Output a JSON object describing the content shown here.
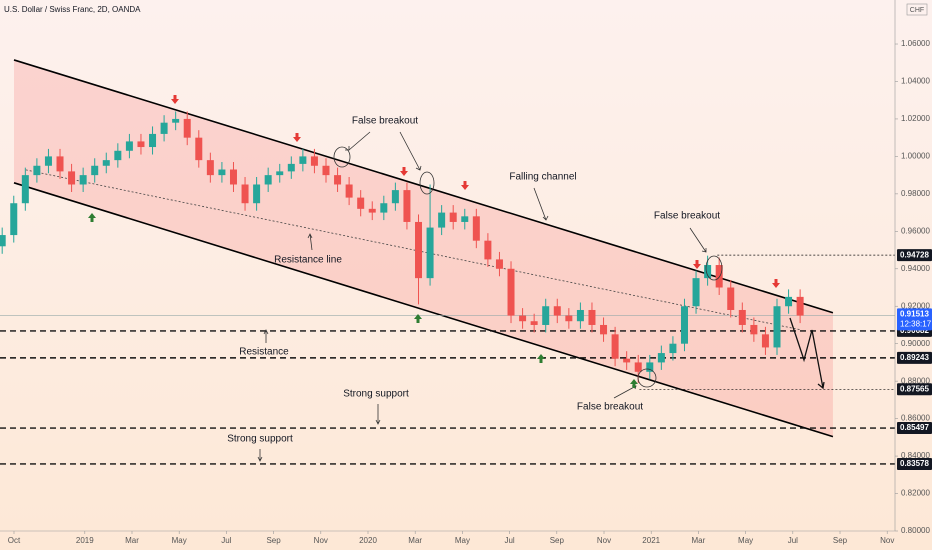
{
  "chart_data": {
    "type": "candlestick",
    "title": "U.S. Dollar / Swiss Franc, 2D, OANDA",
    "currency": "CHF",
    "x": [
      -0.5,
      -0.01,
      0.48,
      0.97,
      1.46,
      1.95,
      2.44,
      2.93,
      3.42,
      3.91,
      4.4,
      4.89,
      5.38,
      5.87,
      6.36,
      6.85,
      7.34,
      7.83,
      8.32,
      8.81,
      9.3,
      9.79,
      10.28,
      10.77,
      11.26,
      11.75,
      12.24,
      12.73,
      13.22,
      13.71,
      14.2,
      14.69,
      15.18,
      15.67,
      16.16,
      16.65,
      17.14,
      17.63,
      18.12,
      18.61,
      19.1,
      19.59,
      20.08,
      20.57,
      21.06,
      21.55,
      22.04,
      22.53,
      23.02,
      23.51,
      24.0,
      24.49,
      24.98,
      25.47,
      25.96,
      26.45,
      26.94,
      27.43,
      27.92,
      28.41,
      28.9,
      29.39,
      29.88,
      30.37,
      30.86,
      31.35,
      31.84,
      32.33,
      32.82,
      33.31
    ],
    "open": [
      0.952,
      0.958,
      0.975,
      0.99,
      0.995,
      1.0,
      0.992,
      0.985,
      0.99,
      0.995,
      0.998,
      1.003,
      1.008,
      1.005,
      1.012,
      1.018,
      1.02,
      1.01,
      0.998,
      0.99,
      0.993,
      0.985,
      0.975,
      0.985,
      0.99,
      0.992,
      0.996,
      1.0,
      0.995,
      0.99,
      0.985,
      0.978,
      0.972,
      0.97,
      0.975,
      0.982,
      0.965,
      0.935,
      0.962,
      0.97,
      0.965,
      0.968,
      0.955,
      0.945,
      0.94,
      0.915,
      0.912,
      0.91,
      0.92,
      0.915,
      0.912,
      0.918,
      0.91,
      0.905,
      0.892,
      0.89,
      0.885,
      0.89,
      0.895,
      0.9,
      0.92,
      0.935,
      0.942,
      0.93,
      0.918,
      0.91,
      0.905,
      0.898,
      0.92,
      0.925
    ],
    "high": [
      0.962,
      0.979,
      0.994,
      0.999,
      1.004,
      1.004,
      0.996,
      0.994,
      0.999,
      1.002,
      1.007,
      1.012,
      1.012,
      1.016,
      1.022,
      1.024,
      1.024,
      1.014,
      1.002,
      0.997,
      0.997,
      0.989,
      0.989,
      0.994,
      0.996,
      1.0,
      1.004,
      1.004,
      0.999,
      0.994,
      0.989,
      0.982,
      0.976,
      0.979,
      0.986,
      0.986,
      0.969,
      0.985,
      0.974,
      0.974,
      0.972,
      0.972,
      0.959,
      0.949,
      0.944,
      0.919,
      0.916,
      0.924,
      0.924,
      0.919,
      0.922,
      0.922,
      0.914,
      0.909,
      0.896,
      0.894,
      0.894,
      0.899,
      0.904,
      0.924,
      0.939,
      0.947,
      0.946,
      0.934,
      0.922,
      0.914,
      0.909,
      0.924,
      0.929,
      0.929
    ],
    "low": [
      0.948,
      0.954,
      0.971,
      0.986,
      0.991,
      0.988,
      0.981,
      0.981,
      0.986,
      0.991,
      0.994,
      0.999,
      1.001,
      1.001,
      1.008,
      1.014,
      1.006,
      0.994,
      0.986,
      0.986,
      0.981,
      0.971,
      0.971,
      0.981,
      0.986,
      0.988,
      0.992,
      0.991,
      0.986,
      0.981,
      0.974,
      0.968,
      0.966,
      0.966,
      0.971,
      0.961,
      0.921,
      0.931,
      0.958,
      0.961,
      0.961,
      0.951,
      0.941,
      0.936,
      0.911,
      0.908,
      0.906,
      0.906,
      0.911,
      0.908,
      0.908,
      0.906,
      0.901,
      0.888,
      0.886,
      0.879,
      0.881,
      0.886,
      0.891,
      0.896,
      0.916,
      0.931,
      0.926,
      0.914,
      0.906,
      0.901,
      0.894,
      0.894,
      0.916,
      0.911
    ],
    "close": [
      0.958,
      0.975,
      0.99,
      0.995,
      1.0,
      0.992,
      0.985,
      0.99,
      0.995,
      0.998,
      1.003,
      1.008,
      1.005,
      1.012,
      1.018,
      1.02,
      1.01,
      0.998,
      0.99,
      0.993,
      0.985,
      0.975,
      0.985,
      0.99,
      0.992,
      0.996,
      1.0,
      0.995,
      0.99,
      0.985,
      0.978,
      0.972,
      0.97,
      0.975,
      0.982,
      0.965,
      0.935,
      0.962,
      0.97,
      0.965,
      0.968,
      0.955,
      0.945,
      0.94,
      0.915,
      0.912,
      0.91,
      0.92,
      0.915,
      0.912,
      0.918,
      0.91,
      0.905,
      0.892,
      0.89,
      0.885,
      0.89,
      0.895,
      0.9,
      0.92,
      0.935,
      0.942,
      0.93,
      0.918,
      0.91,
      0.905,
      0.898,
      0.92,
      0.925,
      0.915
    ],
    "up_color": "#26a69a",
    "down_color": "#ef5350",
    "xlim": [
      -0.593,
      37.33
    ],
    "xticks": [
      {
        "value": 0,
        "label": "Oct"
      },
      {
        "value": 3,
        "label": "2019"
      },
      {
        "value": 5,
        "label": "Mar"
      },
      {
        "value": 7,
        "label": "May"
      },
      {
        "value": 9,
        "label": "Jul"
      },
      {
        "value": 11,
        "label": "Sep"
      },
      {
        "value": 13,
        "label": "Nov"
      },
      {
        "value": 15,
        "label": "2020"
      },
      {
        "value": 17,
        "label": "Mar"
      },
      {
        "value": 19,
        "label": "May"
      },
      {
        "value": 21,
        "label": "Jul"
      },
      {
        "value": 23,
        "label": "Sep"
      },
      {
        "value": 25,
        "label": "Nov"
      },
      {
        "value": 27,
        "label": "2021"
      },
      {
        "value": 29,
        "label": "Mar"
      },
      {
        "value": 31,
        "label": "May"
      },
      {
        "value": 33,
        "label": "Jul"
      },
      {
        "value": 35,
        "label": "Sep"
      },
      {
        "value": 37,
        "label": "Nov"
      }
    ],
    "ylim": [
      0.8,
      1.0835
    ],
    "yticks": [
      {
        "value": 0.8,
        "label": "0.80000"
      },
      {
        "value": 0.82,
        "label": "0.82000"
      },
      {
        "value": 0.84,
        "label": "0.84000"
      },
      {
        "value": 0.86,
        "label": "0.86000"
      },
      {
        "value": 0.88,
        "label": "0.88000"
      },
      {
        "value": 0.9,
        "label": "0.90000"
      },
      {
        "value": 0.92,
        "label": "0.92000"
      },
      {
        "value": 0.94,
        "label": "0.94000"
      },
      {
        "value": 0.96,
        "label": "0.96000"
      },
      {
        "value": 0.98,
        "label": "0.98000"
      },
      {
        "value": 1.0,
        "label": "1.00000"
      },
      {
        "value": 1.02,
        "label": "1.02000"
      },
      {
        "value": 1.04,
        "label": "1.04000"
      },
      {
        "value": 1.06,
        "label": "1.06000"
      }
    ],
    "grid": false,
    "levels": [
      {
        "value": 0.94728,
        "label": "0.94728",
        "style": "thin",
        "from": 29.8
      },
      {
        "value": 0.90682,
        "label": "0.90682",
        "style": "thick",
        "from": -0.593
      },
      {
        "value": 0.89243,
        "label": "0.89243",
        "style": "thick",
        "from": -0.593
      },
      {
        "value": 0.87565,
        "label": "0.87565",
        "style": "thin",
        "from": 26.5
      },
      {
        "value": 0.85497,
        "label": "0.85497",
        "style": "thick",
        "from": -0.593
      },
      {
        "value": 0.83578,
        "label": "0.83578",
        "style": "thick",
        "from": -0.593
      }
    ],
    "last_price": {
      "value": 0.91513,
      "label": "0.91513",
      "countdown": "12:38:17"
    },
    "channel": {
      "upper": {
        "x": [
          0,
          34.7
        ],
        "y": [
          1.0515,
          0.9165
        ]
      },
      "lower": {
        "x": [
          0,
          34.7
        ],
        "y": [
          0.9859,
          0.8504
        ]
      }
    },
    "resistance_line": {
      "x": [
        0.5,
        33.3
      ],
      "y": [
        0.9928,
        0.9075
      ]
    },
    "annotations": [
      "False breakout",
      "Falling channel",
      "False breakout",
      "Resistance line",
      "Resistance",
      "Strong support",
      "Strong support",
      "False breakout"
    ]
  }
}
